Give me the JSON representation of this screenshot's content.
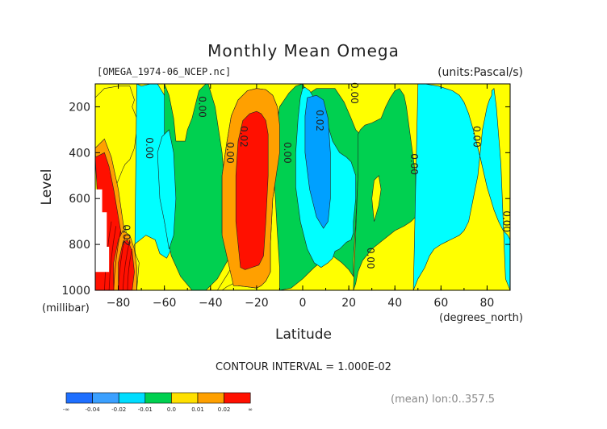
{
  "chart_data": {
    "type": "contour",
    "title": "Monthly Mean Omega",
    "file_label": "[OMEGA_1974-06_NCEP.nc]",
    "units_label": "(units:Pascal/s)",
    "xlabel": "Latitude",
    "x_units": "(degrees_north)",
    "ylabel": "Level",
    "y_units": "(millibar)",
    "contour_interval_text": "CONTOUR INTERVAL = 1.000E-02",
    "mean_note": "(mean) lon:0..357.5",
    "xlim": [
      -90,
      90
    ],
    "ylim": [
      1000,
      100
    ],
    "x_ticks": [
      -80,
      -60,
      -40,
      -20,
      0,
      20,
      40,
      60,
      80
    ],
    "y_ticks": [
      200,
      400,
      600,
      800,
      1000
    ],
    "contour_interval": 0.01,
    "contour_labels": [
      {
        "text": "0.00",
        "x": -68,
        "y": 380
      },
      {
        "text": "0.00",
        "x": -45,
        "y": 200
      },
      {
        "text": "0.00",
        "x": -33,
        "y": 400
      },
      {
        "text": "0.02",
        "x": -27,
        "y": 330
      },
      {
        "text": "0.00",
        "x": -8,
        "y": 400
      },
      {
        "text": "0.02",
        "x": 6,
        "y": 260
      },
      {
        "text": "0.00",
        "x": 21,
        "y": 140
      },
      {
        "text": "0.00",
        "x": 47,
        "y": 450
      },
      {
        "text": "0.00",
        "x": 74,
        "y": 330
      },
      {
        "text": "0.00",
        "x": 87,
        "y": 700
      },
      {
        "text": "0.00",
        "x": 28,
        "y": 860
      },
      {
        "text": "0.02",
        "x": -78,
        "y": 760
      }
    ],
    "regions": [
      {
        "level": "0.01",
        "x": [
          -90,
          -87,
          -85,
          -83,
          -82,
          -78,
          -77,
          -75,
          -73,
          -72,
          -72,
          -74,
          -73,
          -74,
          -75,
          -80,
          -86,
          -90
        ],
        "y": [
          1000,
          980,
          850,
          700,
          570,
          470,
          450,
          430,
          380,
          300,
          250,
          200,
          170,
          140,
          110,
          110,
          120,
          160
        ]
      },
      {
        "level": "-0.01",
        "x": [
          -73,
          -72,
          -72,
          -73,
          -68,
          -64,
          -62,
          -59,
          -57,
          -56,
          -55,
          -55,
          -56,
          -57,
          -58,
          -60,
          -63,
          -66,
          -70,
          -72
        ],
        "y": [
          1000,
          980,
          900,
          800,
          760,
          780,
          840,
          860,
          820,
          760,
          700,
          600,
          500,
          400,
          300,
          150,
          100,
          100,
          110,
          100
        ]
      },
      {
        "level": "0.00",
        "x": [
          -60,
          -58,
          -56,
          -55,
          -51,
          -50,
          -48,
          -46,
          -45,
          -43,
          -42,
          -41,
          -38,
          -35,
          -33,
          -32,
          -37,
          -42,
          -48,
          -53,
          -57,
          -60
        ],
        "y": [
          100,
          150,
          250,
          350,
          350,
          300,
          250,
          170,
          130,
          110,
          100,
          100,
          200,
          400,
          650,
          860,
          950,
          1000,
          1000,
          940,
          850,
          700
        ]
      },
      {
        "level": "0.01",
        "x": [
          -37,
          -32,
          -30,
          -33,
          -35,
          -35,
          -33,
          -31,
          -28,
          -24,
          -20,
          -16,
          -13,
          -11,
          -10,
          -10,
          -13,
          -14,
          -14,
          -14,
          -15,
          -16,
          -18,
          -20,
          -24,
          -28,
          -30,
          -33,
          -35
        ],
        "y": [
          1000,
          920,
          880,
          840,
          750,
          500,
          360,
          240,
          170,
          130,
          120,
          125,
          150,
          200,
          280,
          400,
          600,
          800,
          870,
          920,
          940,
          960,
          980,
          990,
          985,
          980,
          970,
          985,
          1000
        ]
      },
      {
        "level": "0.00",
        "x": [
          -10,
          -10,
          -11,
          -13,
          -10,
          -6,
          -3,
          0,
          1,
          1,
          3,
          6,
          10,
          14,
          18,
          21,
          23,
          25,
          24,
          23,
          22,
          22,
          20,
          17,
          13,
          10,
          5,
          0,
          -5
        ],
        "y": [
          1000,
          900,
          750,
          400,
          200,
          140,
          110,
          100,
          120,
          200,
          140,
          120,
          120,
          120,
          180,
          250,
          300,
          320,
          500,
          700,
          870,
          940,
          910,
          880,
          850,
          860,
          900,
          950,
          990
        ]
      },
      {
        "level": "-0.01",
        "x": [
          0,
          -1,
          -2,
          -3,
          -3,
          -1,
          2,
          5,
          8,
          11,
          13,
          14,
          16,
          18,
          19,
          21,
          22,
          22,
          23,
          23,
          21,
          19,
          16,
          13,
          10,
          6,
          3,
          1
        ],
        "y": [
          120,
          160,
          250,
          400,
          550,
          700,
          820,
          880,
          900,
          880,
          860,
          830,
          820,
          800,
          790,
          780,
          750,
          700,
          600,
          500,
          440,
          420,
          400,
          350,
          250,
          180,
          130,
          115
        ]
      },
      {
        "level": "0.00",
        "x": [
          22,
          23,
          24,
          26,
          30,
          35,
          40,
          44,
          47,
          48,
          49,
          49,
          47,
          45,
          44,
          42,
          40,
          38,
          36,
          34,
          32,
          30,
          27,
          25,
          24,
          24
        ],
        "y": [
          1000,
          970,
          920,
          870,
          820,
          780,
          740,
          720,
          700,
          690,
          680,
          500,
          350,
          200,
          150,
          120,
          130,
          160,
          200,
          250,
          260,
          270,
          280,
          300,
          320,
          500
        ]
      },
      {
        "level": "-0.01",
        "x": [
          48,
          50,
          53,
          55,
          57,
          60,
          62,
          64,
          66,
          68,
          70,
          72,
          74,
          76,
          77,
          78,
          79,
          80,
          81,
          82,
          82,
          83,
          84,
          86,
          87,
          88,
          90,
          90,
          89,
          87,
          85,
          83,
          80,
          77,
          74,
          72,
          70,
          68,
          65,
          62,
          59,
          56,
          53,
          50
        ],
        "y": [
          1000,
          950,
          900,
          850,
          820,
          800,
          790,
          780,
          770,
          760,
          740,
          700,
          600,
          500,
          400,
          300,
          250,
          200,
          170,
          150,
          130,
          120,
          200,
          450,
          700,
          950,
          1000,
          780,
          760,
          740,
          700,
          650,
          550,
          420,
          300,
          230,
          180,
          150,
          130,
          120,
          110,
          105,
          100,
          100
        ]
      },
      {
        "level": "0.01",
        "x": [
          -86,
          -84,
          -83,
          -80,
          -77,
          -76,
          -73,
          -71,
          -72
        ],
        "y": [
          1000,
          980,
          860,
          760,
          720,
          790,
          830,
          880,
          1000
        ]
      },
      {
        "level": "0.01",
        "x": [
          31,
          33,
          34,
          33,
          31,
          30
        ],
        "y": [
          700,
          630,
          560,
          500,
          520,
          600
        ]
      }
    ],
    "colorbar": {
      "labels": [
        "-∞",
        "-0.04",
        "-0.02",
        "-0.01",
        "0.0",
        "0.01",
        "0.02",
        "∞"
      ],
      "colors": [
        "#1e6fff",
        "#3ba0ff",
        "#00ddff",
        "#00d050",
        "#ffe000",
        "#ffa000",
        "#ff1000"
      ]
    },
    "colors": {
      "strong_red": "#ff1000",
      "orange": "#ffa000",
      "yellow": "#ffff00",
      "green": "#00d050",
      "cyan": "#00ffff",
      "blue": "#00a0ff",
      "dark_red": "#800000"
    }
  }
}
